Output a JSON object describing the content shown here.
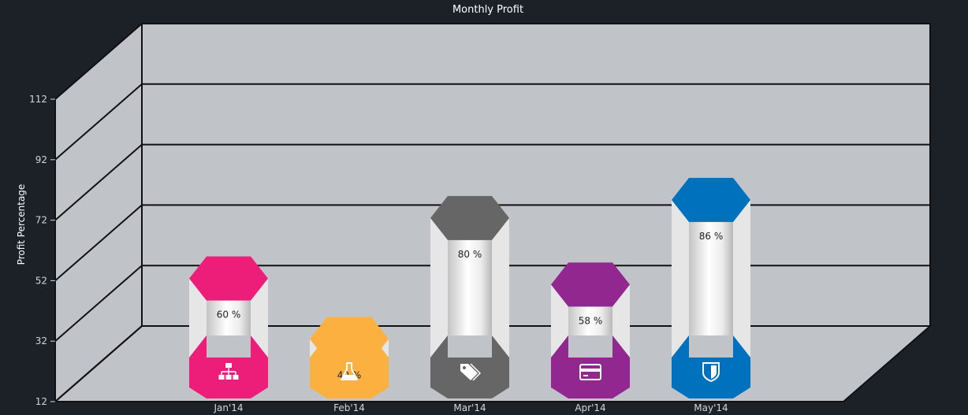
{
  "chart_data": {
    "type": "bar",
    "title": "Monthly Profit",
    "xlabel": "",
    "ylabel": "Profit Percentage",
    "ylim": [
      12,
      112
    ],
    "yticks": [
      12,
      32,
      52,
      72,
      92,
      112
    ],
    "grid": true,
    "categories": [
      "Jan'14",
      "Feb'14",
      "Mar'14",
      "Apr'14",
      "May'14"
    ],
    "values": [
      60,
      40,
      80,
      58,
      86
    ],
    "data_labels": [
      "60 %",
      "40 %",
      "80 %",
      "58 %",
      "86 %"
    ],
    "colors": [
      "#ed1e79",
      "#fbb040",
      "#666666",
      "#92278f",
      "#0071bc"
    ],
    "icons": [
      "sitemap-icon",
      "flask-icon",
      "tags-icon",
      "credit-card-icon",
      "shield-icon"
    ]
  }
}
